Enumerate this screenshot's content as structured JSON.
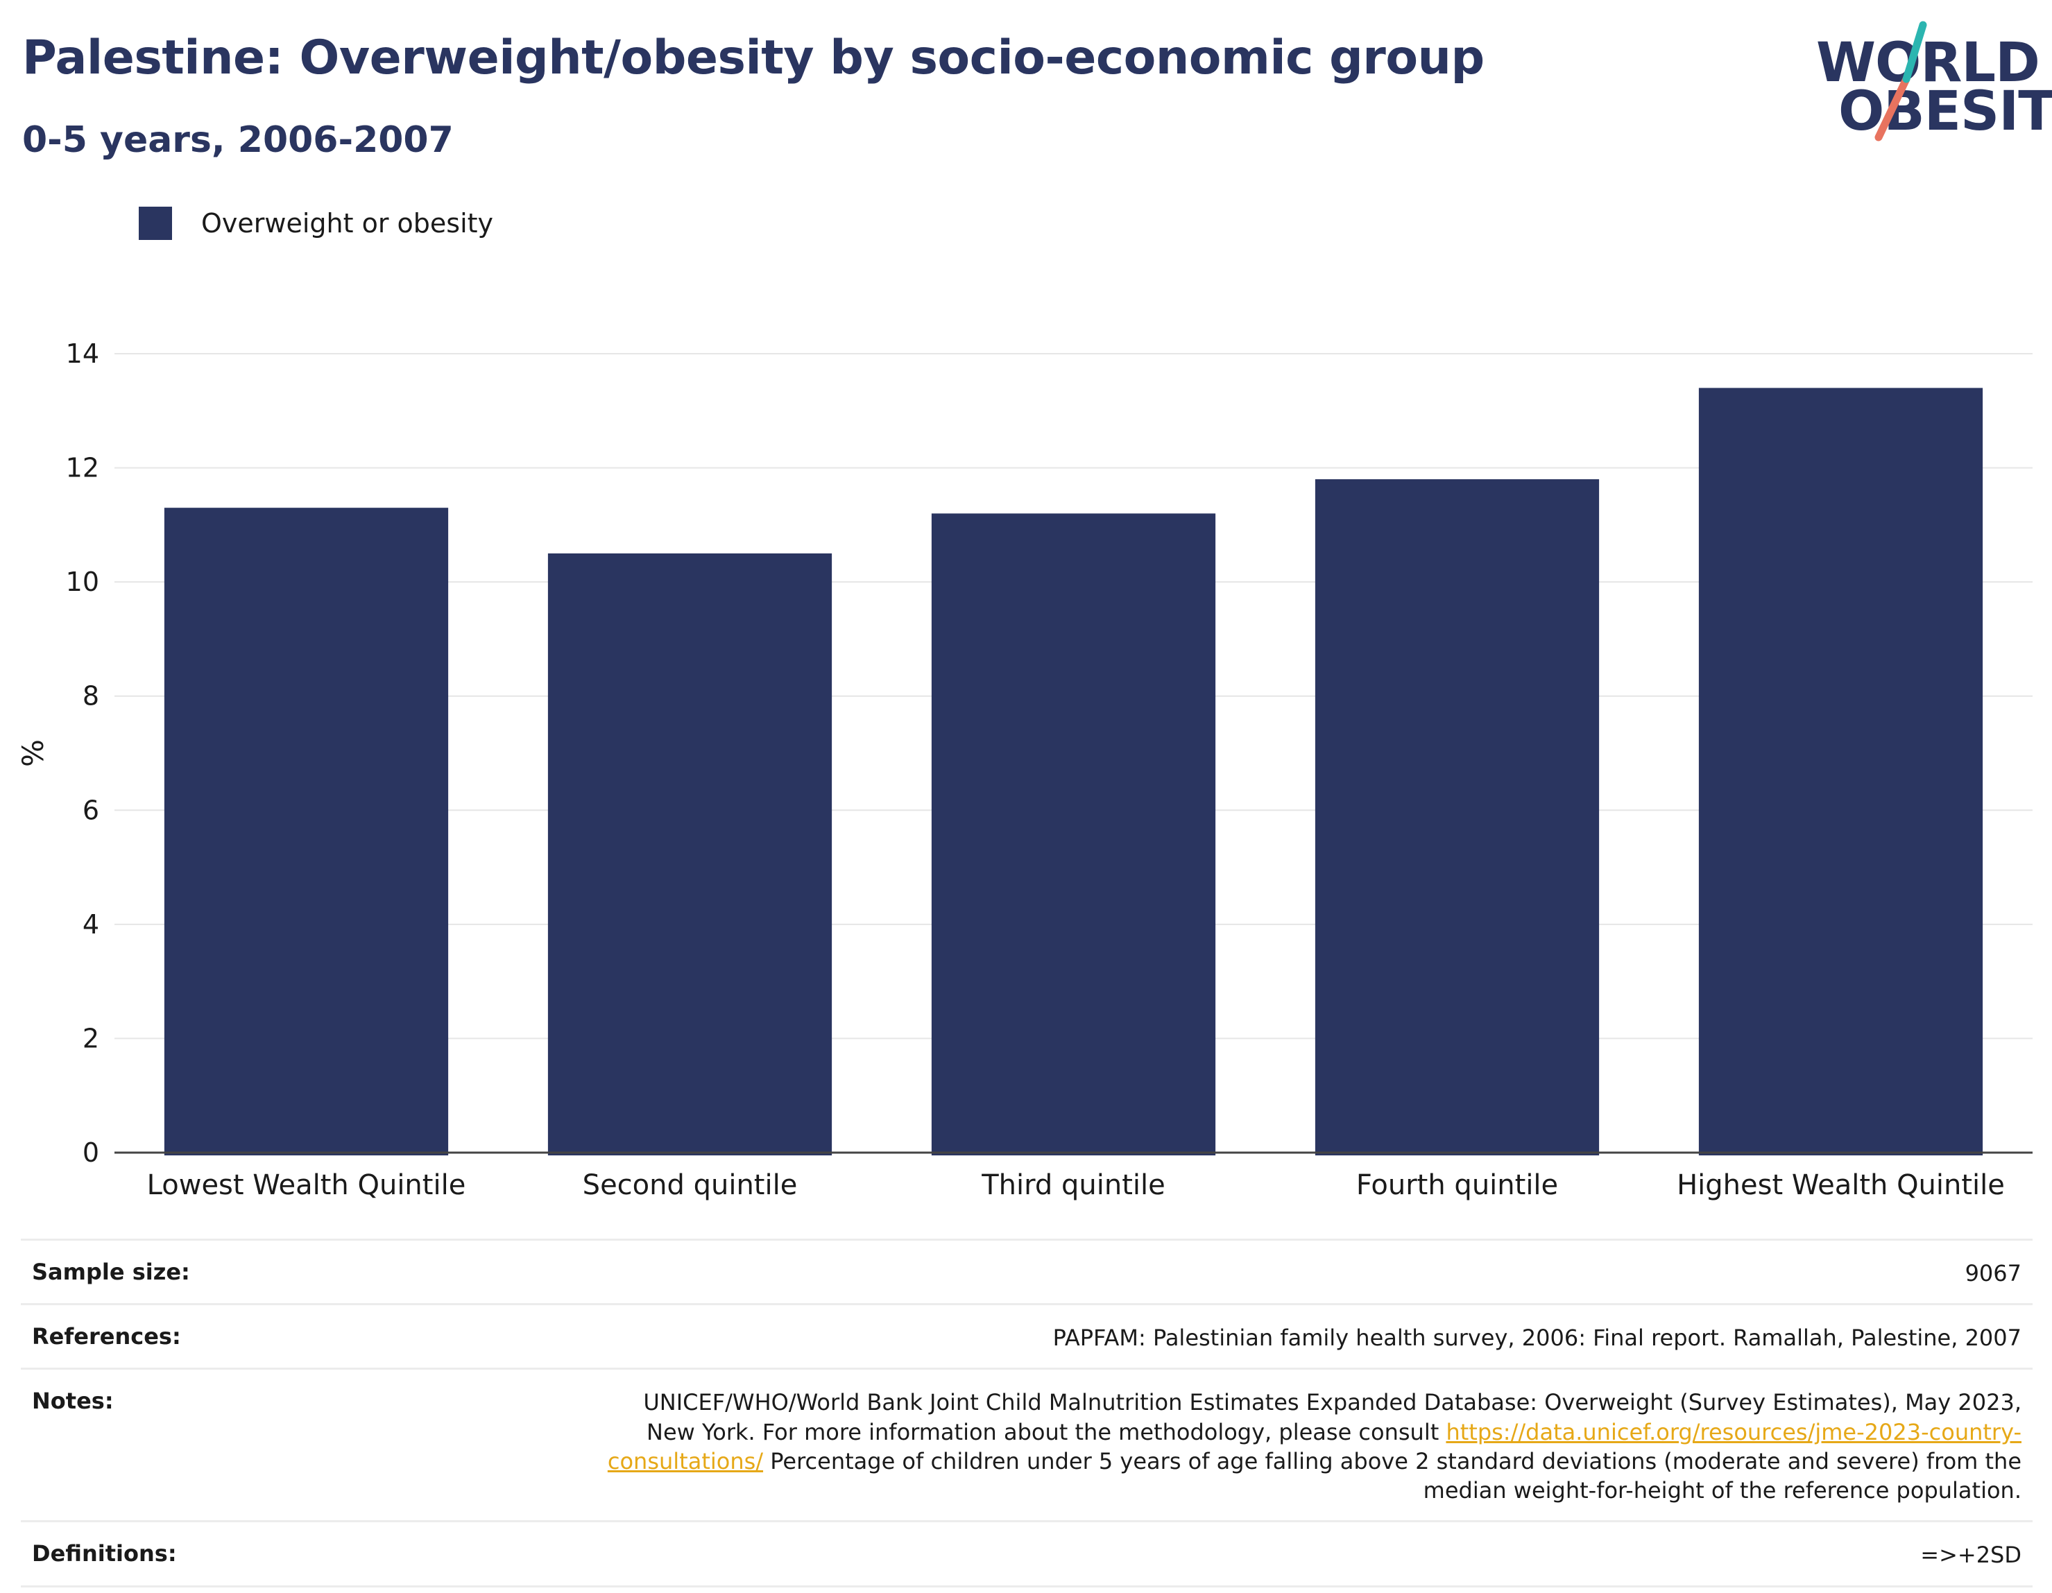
{
  "header": {
    "title": "Palestine: Overweight/obesity by socio-economic group",
    "subtitle": "0-5 years, 2006-2007"
  },
  "logo": {
    "line1": "WORLD",
    "line2": "OBESITY",
    "accent_teal": "#2bb5b0",
    "accent_coral": "#e8735f"
  },
  "colors": {
    "bar": "#2a3560",
    "title": "#2a3560",
    "link": "#e6a817"
  },
  "chart_data": {
    "type": "bar",
    "categories": [
      "Lowest Wealth Quintile",
      "Second quintile",
      "Third quintile",
      "Fourth quintile",
      "Highest Wealth Quintile"
    ],
    "series": [
      {
        "name": "Overweight or obesity",
        "values": [
          11.3,
          10.5,
          11.2,
          11.8,
          13.4
        ]
      }
    ],
    "ylabel": "%",
    "ylim": [
      0,
      14
    ],
    "yticks": [
      0,
      2,
      4,
      6,
      8,
      10,
      12,
      14
    ],
    "grid": true,
    "legend": "top-left"
  },
  "info": {
    "sample_size_label": "Sample size:",
    "sample_size_value": "9067",
    "references_label": "References:",
    "references_value": "PAPFAM: Palestinian family health survey, 2006: Final report. Ramallah, Palestine, 2007",
    "notes_label": "Notes:",
    "notes_part1": "UNICEF/WHO/World Bank Joint Child Malnutrition Estimates Expanded Database: Overweight (Survey Estimates), May 2023, New York. For more information about the methodology, please consult ",
    "notes_link": "https://data.unicef.org/resources/jme-2023-country-consultations/",
    "notes_part2": " Percentage of children under 5 years of age falling above 2 standard deviations (moderate and severe) from the median weight-for-height of the reference population.",
    "definitions_label": "Definitions:",
    "definitions_value": "=>+2SD"
  }
}
